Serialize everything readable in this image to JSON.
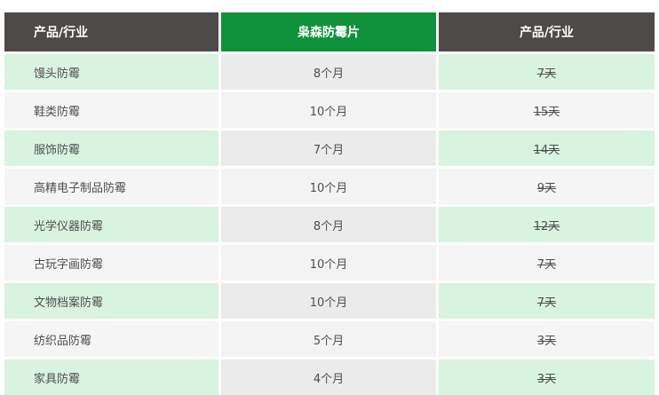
{
  "table": {
    "headers": [
      {
        "label": "产品/行业"
      },
      {
        "label": "枭森防霉片"
      },
      {
        "label": "产品/行业"
      }
    ],
    "rows": [
      {
        "product": "馒头防霉",
        "duration": "8个月",
        "competitor_days": "7天"
      },
      {
        "product": "鞋类防霉",
        "duration": "10个月",
        "competitor_days": "15天"
      },
      {
        "product": "服饰防霉",
        "duration": "7个月",
        "competitor_days": "14天"
      },
      {
        "product": "高精电子制品防霉",
        "duration": "10个月",
        "competitor_days": "9天"
      },
      {
        "product": "光学仪器防霉",
        "duration": "8个月",
        "competitor_days": "12天"
      },
      {
        "product": "古玩字画防霉",
        "duration": "10个月",
        "competitor_days": "7天"
      },
      {
        "product": "文物档案防霉",
        "duration": "10个月",
        "competitor_days": "7天"
      },
      {
        "product": "纺织品防霉",
        "duration": "5个月",
        "competitor_days": "3天"
      },
      {
        "product": "家具防霉",
        "duration": "4个月",
        "competitor_days": "3天"
      }
    ],
    "colors": {
      "header_dark": "#4d4a48",
      "header_green": "#10923c",
      "row_green": "#d8f3e0",
      "row_gray": "#ebebeb",
      "row_light": "#f5f5f5",
      "text": "#4e4e4e"
    },
    "notes": {
      "competitor_values_struck_through": true
    }
  }
}
